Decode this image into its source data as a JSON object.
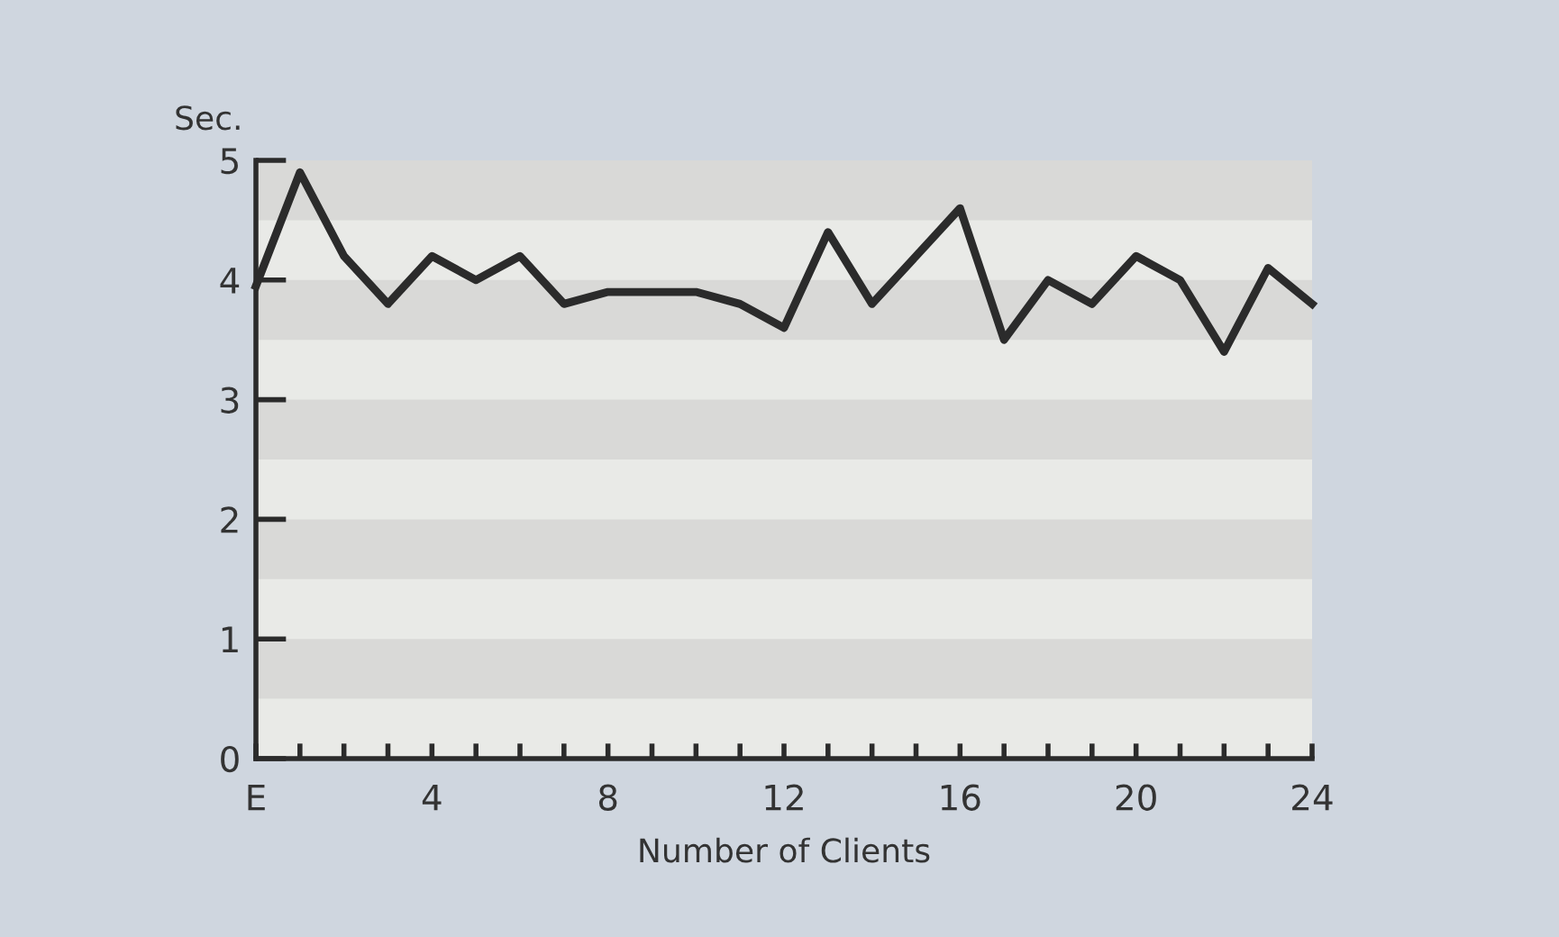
{
  "chart_data": {
    "type": "line",
    "xlabel": "Number of Clients",
    "ylabel": "Sec.",
    "x": [
      0,
      1,
      2,
      3,
      4,
      5,
      6,
      7,
      8,
      9,
      10,
      11,
      12,
      13,
      14,
      15,
      16,
      17,
      18,
      19,
      20,
      21,
      22,
      23,
      24
    ],
    "series": [
      {
        "color": "#2b2b2b",
        "values": [
          3.95,
          4.9,
          4.2,
          3.8,
          4.2,
          4.0,
          4.2,
          3.8,
          3.9,
          3.9,
          3.9,
          3.8,
          3.6,
          4.4,
          3.8,
          4.2,
          4.6,
          3.5,
          4.0,
          3.8,
          4.2,
          4.0,
          3.4,
          4.1,
          3.8
        ]
      }
    ],
    "xlim": [
      0,
      24
    ],
    "ylim": [
      0,
      5
    ],
    "xticks": [
      {
        "value": 0,
        "label": "E"
      },
      {
        "value": 1,
        "label": null
      },
      {
        "value": 2,
        "label": null
      },
      {
        "value": 3,
        "label": null
      },
      4,
      {
        "value": 5,
        "label": null
      },
      {
        "value": 6,
        "label": null
      },
      {
        "value": 7,
        "label": null
      },
      8,
      {
        "value": 9,
        "label": null
      },
      {
        "value": 10,
        "label": null
      },
      {
        "value": 11,
        "label": null
      },
      12,
      {
        "value": 13,
        "label": null
      },
      {
        "value": 14,
        "label": null
      },
      {
        "value": 15,
        "label": null
      },
      16,
      {
        "value": 17,
        "label": null
      },
      {
        "value": 18,
        "label": null
      },
      {
        "value": 19,
        "label": null
      },
      20,
      {
        "value": 21,
        "label": null
      },
      {
        "value": 22,
        "label": null
      },
      {
        "value": 23,
        "label": null
      },
      24
    ],
    "yticks": [
      0,
      1,
      2,
      3,
      4,
      5
    ],
    "bands": [
      {
        "axis": "y",
        "from": 0.5,
        "to": 1,
        "color": "#d9d9d7"
      },
      {
        "axis": "y",
        "from": 1.5,
        "to": 2,
        "color": "#d9d9d7"
      },
      {
        "axis": "y",
        "from": 2.5,
        "to": 3,
        "color": "#d9d9d7"
      },
      {
        "axis": "y",
        "from": 3.5,
        "to": 4,
        "color": "#d9d9d7"
      },
      {
        "axis": "y",
        "from": 4.5,
        "to": 5,
        "color": "#d9d9d7"
      }
    ],
    "grid": false,
    "marker": "none",
    "line_style": "solid"
  }
}
